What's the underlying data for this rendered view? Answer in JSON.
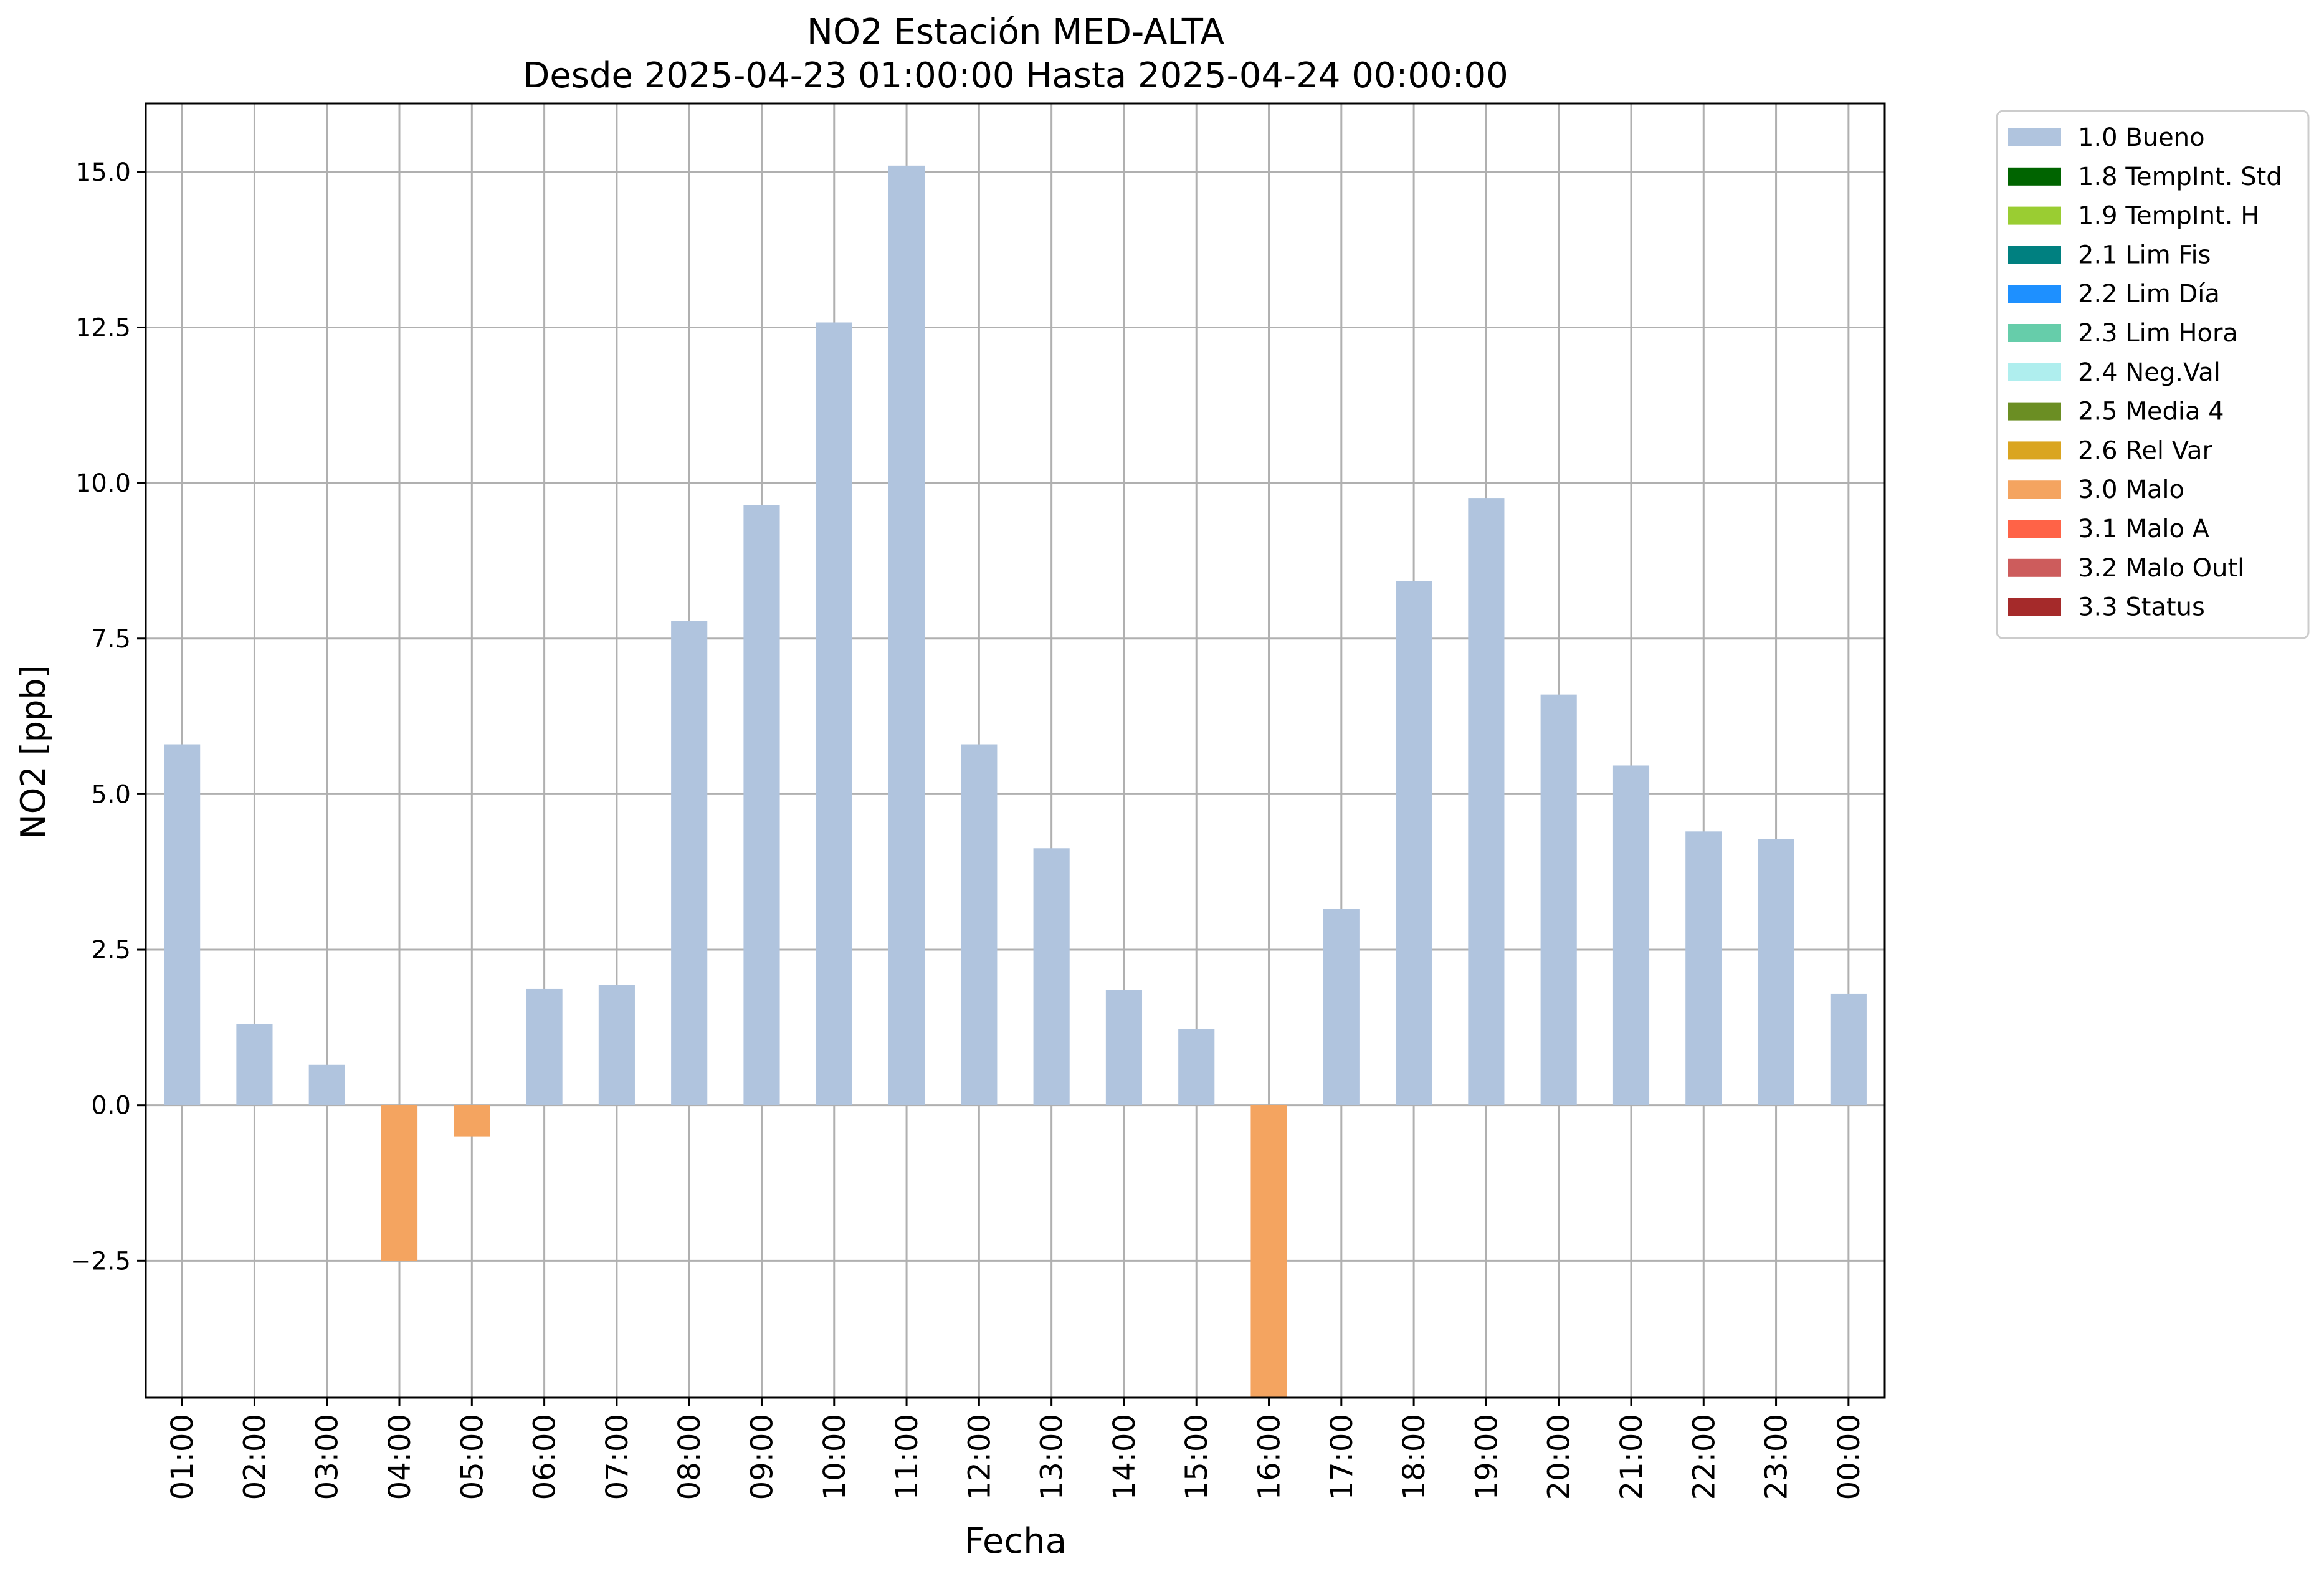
{
  "chart_data": {
    "type": "bar",
    "title": "NO2 Estación MED-ALTA",
    "subtitle": "Desde 2025-04-23 01:00:00 Hasta 2025-04-24 00:00:00",
    "xlabel": "Fecha",
    "ylabel": "NO2 [ppb]",
    "ylim": [
      -4.7,
      16.1
    ],
    "yticks": [
      -2.5,
      0.0,
      2.5,
      5.0,
      7.5,
      10.0,
      12.5,
      15.0
    ],
    "ytick_labels": [
      "−2.5",
      "0.0",
      "2.5",
      "5.0",
      "7.5",
      "10.0",
      "12.5",
      "15.0"
    ],
    "grid": true,
    "legend_position": "outside-top-right",
    "categories": [
      "01:00",
      "02:00",
      "03:00",
      "04:00",
      "05:00",
      "06:00",
      "07:00",
      "08:00",
      "09:00",
      "10:00",
      "11:00",
      "12:00",
      "13:00",
      "14:00",
      "15:00",
      "16:00",
      "17:00",
      "18:00",
      "19:00",
      "20:00",
      "21:00",
      "22:00",
      "23:00",
      "00:00"
    ],
    "values": [
      5.8,
      1.3,
      0.65,
      -2.5,
      -0.5,
      1.87,
      1.93,
      7.78,
      9.65,
      12.58,
      15.1,
      5.8,
      4.13,
      1.85,
      1.22,
      -4.8,
      3.16,
      8.42,
      9.76,
      6.6,
      5.46,
      4.4,
      4.28,
      1.79
    ],
    "flags": [
      "1.0 Bueno",
      "1.0 Bueno",
      "1.0 Bueno",
      "3.0 Malo",
      "3.0 Malo",
      "1.0 Bueno",
      "1.0 Bueno",
      "1.0 Bueno",
      "1.0 Bueno",
      "1.0 Bueno",
      "1.0 Bueno",
      "1.0 Bueno",
      "1.0 Bueno",
      "1.0 Bueno",
      "1.0 Bueno",
      "3.0 Malo",
      "1.0 Bueno",
      "1.0 Bueno",
      "1.0 Bueno",
      "1.0 Bueno",
      "1.0 Bueno",
      "1.0 Bueno",
      "1.0 Bueno",
      "1.0 Bueno"
    ],
    "legend": [
      {
        "label": "1.0 Bueno",
        "color": "#b0c4de"
      },
      {
        "label": "1.8 TempInt. Std",
        "color": "#006400"
      },
      {
        "label": "1.9 TempInt. H",
        "color": "#9acd32"
      },
      {
        "label": "2.1 Lim Fis",
        "color": "#008080"
      },
      {
        "label": "2.2 Lim Día",
        "color": "#1e90ff"
      },
      {
        "label": "2.3 Lim Hora",
        "color": "#66cdaa"
      },
      {
        "label": "2.4 Neg.Val",
        "color": "#afeeee"
      },
      {
        "label": "2.5 Media 4",
        "color": "#6b8e23"
      },
      {
        "label": "2.6 Rel Var",
        "color": "#daa520"
      },
      {
        "label": "3.0 Malo",
        "color": "#f4a460"
      },
      {
        "label": "3.1 Malo A",
        "color": "#ff6347"
      },
      {
        "label": "3.2 Malo Outl",
        "color": "#cd5c5c"
      },
      {
        "label": "3.3 Status",
        "color": "#a52a2a"
      }
    ]
  }
}
